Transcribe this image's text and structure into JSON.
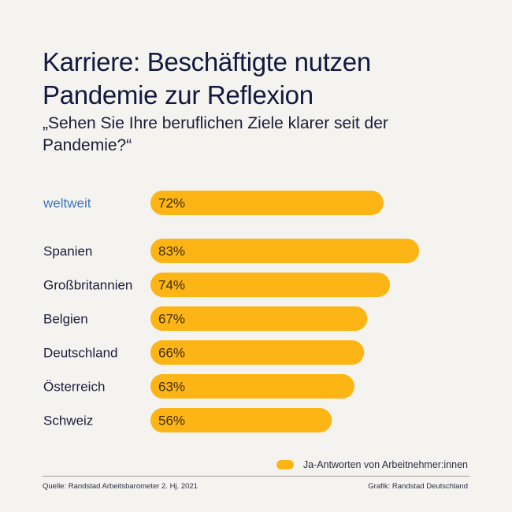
{
  "header": {
    "title": "Karriere: Beschäftigte nutzen Pandemie zur Reflexion",
    "subtitle": "„Sehen Sie Ihre beruflichen Ziele klarer seit der Pandemie?“"
  },
  "colors": {
    "bar": "#fdb515",
    "highlight_label": "#3b78c3",
    "label": "#1a1d3a",
    "value_text": "#3a2a10"
  },
  "chart_data": {
    "type": "bar",
    "orientation": "horizontal",
    "title": "Karriere: Beschäftigte nutzen Pandemie zur Reflexion",
    "subtitle": "„Sehen Sie Ihre beruflichen Ziele klarer seit der Pandemie?“",
    "xlabel": "",
    "ylabel": "",
    "xlim": [
      0,
      100
    ],
    "grid": false,
    "legend_position": "bottom-right",
    "categories": [
      "weltweit",
      "Spanien",
      "Großbritannien",
      "Belgien",
      "Deutschland",
      "Österreich",
      "Schweiz"
    ],
    "highlight": [
      "weltweit"
    ],
    "series": [
      {
        "name": "Ja-Antworten von Arbeitnehmer:innen",
        "values": [
          72,
          83,
          74,
          67,
          66,
          63,
          56
        ],
        "labels": [
          "72%",
          "83%",
          "74%",
          "67%",
          "66%",
          "63%",
          "56%"
        ]
      }
    ]
  },
  "legend": {
    "label": "Ja-Antworten von Arbeitnehmer:innen"
  },
  "footer": {
    "source": "Quelle: Randstad Arbeitsbarometer 2. Hj. 2021",
    "credit": "Grafik: Randstad Deutschland"
  }
}
